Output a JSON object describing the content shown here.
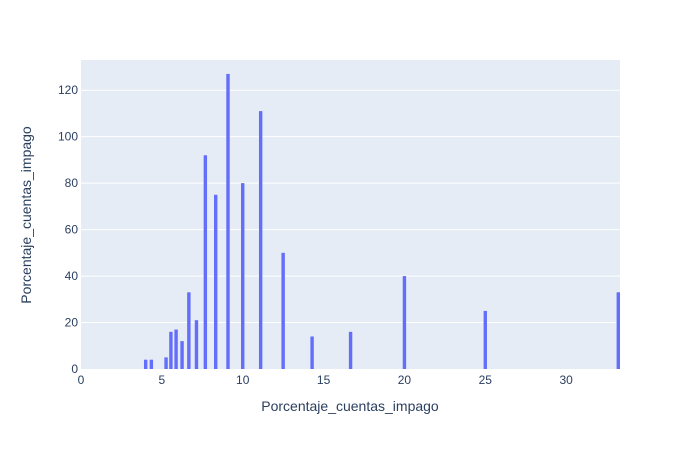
{
  "chart_data": {
    "type": "bar",
    "xlabel": "Porcentaje_cuentas_impago",
    "ylabel": "Porcentaje_cuentas_impago",
    "xlim": [
      0,
      33.33
    ],
    "ylim": [
      0,
      133
    ],
    "x_ticks": [
      0,
      5,
      10,
      15,
      20,
      25,
      30
    ],
    "y_ticks": [
      0,
      20,
      40,
      60,
      80,
      100,
      120
    ],
    "grid": true,
    "colors": {
      "plot_bg": "#e5ecf6",
      "bar": "#636efa",
      "grid": "#ffffff",
      "text": "#2a3f5f"
    },
    "bars": [
      {
        "x": 4.0,
        "y": 4
      },
      {
        "x": 4.35,
        "y": 4
      },
      {
        "x": 5.26,
        "y": 5
      },
      {
        "x": 5.56,
        "y": 16
      },
      {
        "x": 5.88,
        "y": 17
      },
      {
        "x": 6.25,
        "y": 12
      },
      {
        "x": 6.67,
        "y": 33
      },
      {
        "x": 7.14,
        "y": 21
      },
      {
        "x": 7.69,
        "y": 92
      },
      {
        "x": 8.33,
        "y": 75
      },
      {
        "x": 9.09,
        "y": 127
      },
      {
        "x": 10.0,
        "y": 80
      },
      {
        "x": 11.11,
        "y": 111
      },
      {
        "x": 12.5,
        "y": 50
      },
      {
        "x": 14.29,
        "y": 14
      },
      {
        "x": 16.67,
        "y": 16
      },
      {
        "x": 20.0,
        "y": 40
      },
      {
        "x": 25.0,
        "y": 25
      },
      {
        "x": 33.33,
        "y": 33
      }
    ]
  }
}
